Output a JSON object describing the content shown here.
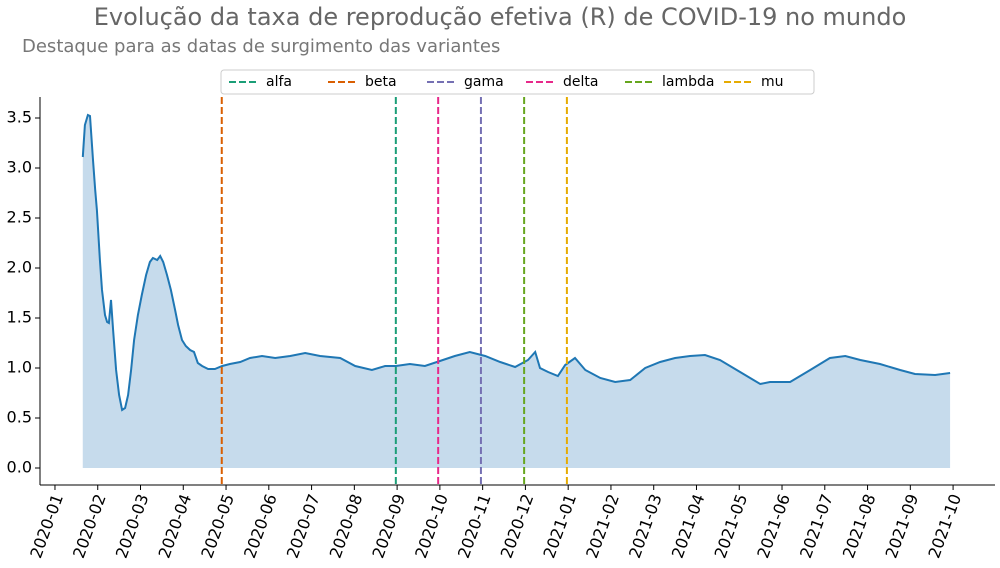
{
  "chart_data": {
    "type": "area",
    "title": "Evolução da taxa de reprodução efetiva (R) de COVID-19 no mundo",
    "subtitle": "Destaque para as datas de surgimento das variantes",
    "color": "#1f77b4",
    "fill_color": "#c6dbec",
    "legend": "upper center",
    "x": [
      0.65,
      0.7,
      0.77,
      0.82,
      0.89,
      0.94,
      0.98,
      1.05,
      1.1,
      1.17,
      1.22,
      1.26,
      1.31,
      1.36,
      1.43,
      1.5,
      1.57,
      1.64,
      1.71,
      1.78,
      1.85,
      1.94,
      2.03,
      2.13,
      2.22,
      2.29,
      2.39,
      2.46,
      2.53,
      2.62,
      2.71,
      2.81,
      2.88,
      2.97,
      3.06,
      3.16,
      3.25,
      3.34,
      3.44,
      3.58,
      3.74,
      3.91,
      4.09,
      4.33,
      4.56,
      4.84,
      5.15,
      5.5,
      5.85,
      6.2,
      6.67,
      7.02,
      7.41,
      7.72,
      7.97,
      8.3,
      8.65,
      9.0,
      9.35,
      9.7,
      10.06,
      10.41,
      10.76,
      11.06,
      11.23,
      11.34,
      11.53,
      11.76,
      11.93,
      12.16,
      12.4,
      12.75,
      13.1,
      13.45,
      13.8,
      14.15,
      14.5,
      14.85,
      15.2,
      15.55,
      16.02,
      16.49,
      16.72,
      17.19,
      17.66,
      18.12,
      18.48,
      18.83,
      19.29,
      19.76,
      20.11,
      20.58,
      20.93
    ],
    "values": [
      3.11,
      3.43,
      3.53,
      3.52,
      3.08,
      2.78,
      2.58,
      2.08,
      1.78,
      1.53,
      1.46,
      1.45,
      1.68,
      1.38,
      0.98,
      0.73,
      0.58,
      0.6,
      0.73,
      0.98,
      1.28,
      1.53,
      1.73,
      1.93,
      2.06,
      2.1,
      2.08,
      2.12,
      2.06,
      1.93,
      1.78,
      1.58,
      1.43,
      1.28,
      1.22,
      1.18,
      1.16,
      1.05,
      1.02,
      0.99,
      0.99,
      1.02,
      1.04,
      1.06,
      1.1,
      1.12,
      1.1,
      1.12,
      1.15,
      1.12,
      1.1,
      1.02,
      0.98,
      1.02,
      1.02,
      1.04,
      1.02,
      1.07,
      1.12,
      1.16,
      1.12,
      1.06,
      1.01,
      1.08,
      1.16,
      1.0,
      0.96,
      0.92,
      1.03,
      1.1,
      0.98,
      0.9,
      0.86,
      0.88,
      1.0,
      1.06,
      1.1,
      1.12,
      1.13,
      1.08,
      0.96,
      0.84,
      0.86,
      0.86,
      0.98,
      1.1,
      1.12,
      1.08,
      1.04,
      0.98,
      0.94,
      0.93,
      0.95
    ],
    "vlines": [
      {
        "name": "alfa",
        "color": "#1b9e77",
        "x": 7.97
      },
      {
        "name": "beta",
        "color": "#d95f02",
        "x": 3.9
      },
      {
        "name": "gama",
        "color": "#7570b3",
        "x": 9.96
      },
      {
        "name": "delta",
        "color": "#e7298a",
        "x": 8.96
      },
      {
        "name": "lambda",
        "color": "#66a61e",
        "x": 10.97
      },
      {
        "name": "mu",
        "color": "#e6ab02",
        "x": 11.97
      }
    ],
    "xlim": [
      -0.35,
      21.98
    ],
    "xticks": [
      {
        "value": 0,
        "label": "2020-01"
      },
      {
        "value": 1,
        "label": "2020-02"
      },
      {
        "value": 2,
        "label": "2020-03"
      },
      {
        "value": 3,
        "label": "2020-04"
      },
      {
        "value": 4,
        "label": "2020-05"
      },
      {
        "value": 5,
        "label": "2020-06"
      },
      {
        "value": 6,
        "label": "2020-07"
      },
      {
        "value": 7,
        "label": "2020-08"
      },
      {
        "value": 8,
        "label": "2020-09"
      },
      {
        "value": 9,
        "label": "2020-10"
      },
      {
        "value": 10,
        "label": "2020-11"
      },
      {
        "value": 11,
        "label": "2020-12"
      },
      {
        "value": 12,
        "label": "2021-01"
      },
      {
        "value": 13,
        "label": "2021-02"
      },
      {
        "value": 14,
        "label": "2021-03"
      },
      {
        "value": 15,
        "label": "2021-04"
      },
      {
        "value": 16,
        "label": "2021-05"
      },
      {
        "value": 17,
        "label": "2021-06"
      },
      {
        "value": 18,
        "label": "2021-07"
      },
      {
        "value": 19,
        "label": "2021-08"
      },
      {
        "value": 20,
        "label": "2021-09"
      },
      {
        "value": 21,
        "label": "2021-10"
      }
    ],
    "ylim": [
      -0.17,
      3.71
    ],
    "yticks": [
      {
        "value": 0,
        "label": "0.0"
      },
      0.5,
      {
        "value": 1,
        "label": "1.0"
      },
      1.5,
      {
        "value": 2,
        "label": "2.0"
      },
      2.5,
      {
        "value": 3,
        "label": "3.0"
      },
      3.5
    ]
  }
}
